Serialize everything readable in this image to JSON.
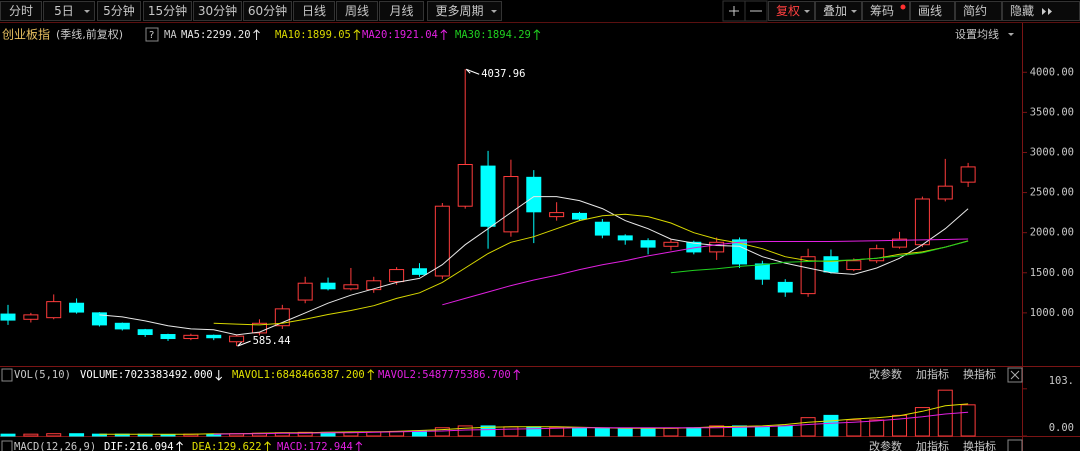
{
  "toolbar": {
    "periods": [
      "分时",
      "5日",
      "5分钟",
      "15分钟",
      "30分钟",
      "60分钟",
      "日线",
      "周线",
      "月线",
      "更多周期"
    ],
    "tools": [
      "复权",
      "叠加",
      "筹码",
      "画线",
      "简约",
      "隐藏"
    ]
  },
  "chart_data": [
    {
      "type": "candlestick",
      "title": "创业板指",
      "subtitle": "(季线,前复权)",
      "indicator": "MA",
      "settings_button": "设置均线",
      "open": [
        985,
        920,
        940,
        1120,
        1000,
        870,
        790,
        730,
        680,
        720,
        640,
        750,
        840,
        1160,
        1370,
        1300,
        1290,
        1390,
        1550,
        1460,
        2330,
        2830,
        2010,
        2690,
        2200,
        2240,
        2130,
        1960,
        1900,
        1830,
        1880,
        1760,
        1910,
        1610,
        1380,
        1240,
        1700,
        1540,
        1650,
        1820,
        1850,
        2420,
        2630
      ],
      "high": [
        1100,
        1000,
        1230,
        1180,
        1010,
        880,
        800,
        740,
        740,
        730,
        730,
        920,
        1100,
        1450,
        1440,
        1560,
        1450,
        1570,
        1620,
        2370,
        4037.96,
        3020,
        2910,
        2780,
        2380,
        2260,
        2170,
        1980,
        1930,
        1920,
        1900,
        1940,
        1940,
        1650,
        1420,
        1800,
        1790,
        1680,
        1850,
        2010,
        2450,
        2920,
        2870
      ],
      "low": [
        850,
        880,
        920,
        990,
        830,
        780,
        700,
        650,
        660,
        660,
        585.44,
        720,
        800,
        1120,
        1280,
        1280,
        1250,
        1350,
        1450,
        1420,
        2300,
        1800,
        1950,
        1870,
        2150,
        2150,
        1930,
        1850,
        1730,
        1780,
        1730,
        1660,
        1560,
        1350,
        1200,
        1200,
        1490,
        1520,
        1620,
        1800,
        1820,
        2390,
        2570
      ],
      "close": [
        910,
        975,
        1140,
        1010,
        850,
        800,
        730,
        680,
        720,
        690,
        710,
        870,
        1050,
        1370,
        1300,
        1350,
        1400,
        1540,
        1480,
        2330,
        2850,
        2080,
        2700,
        2260,
        2250,
        2170,
        1970,
        1910,
        1820,
        1880,
        1760,
        1880,
        1610,
        1420,
        1260,
        1700,
        1510,
        1650,
        1800,
        1920,
        2420,
        2580,
        2820
      ],
      "up_color": "#ff3c3c",
      "down_color": "#00ffff",
      "max_label": "4037.96",
      "min_label": "585.44",
      "ylim": [
        350,
        4340
      ],
      "yticks": [
        {
          "value": 1000,
          "label": "1000.00"
        },
        {
          "value": 1500,
          "label": "1500.00"
        },
        {
          "value": 2000,
          "label": "2000.00"
        },
        {
          "value": 2500,
          "label": "2500.00"
        },
        {
          "value": 3000,
          "label": "3000.00"
        },
        {
          "value": 3500,
          "label": "3500.00"
        },
        {
          "value": 4000,
          "label": "4000.00"
        }
      ],
      "series": [
        {
          "name": "MA5:2299.20",
          "color": "#e8e8e8",
          "values": [
            null,
            null,
            null,
            null,
            975,
            950,
            900,
            840,
            800,
            790,
            725,
            760,
            880,
            1000,
            1120,
            1220,
            1300,
            1380,
            1430,
            1600,
            1850,
            2050,
            2250,
            2450,
            2450,
            2400,
            2300,
            2150,
            2050,
            1920,
            1870,
            1840,
            1830,
            1700,
            1620,
            1560,
            1500,
            1480,
            1560,
            1680,
            1850,
            2050,
            2299.2
          ]
        },
        {
          "name": "MA10:1899.05",
          "color": "#d8d800",
          "values": [
            null,
            null,
            null,
            null,
            null,
            null,
            null,
            null,
            null,
            870,
            860,
            850,
            870,
            920,
            980,
            1030,
            1090,
            1180,
            1250,
            1380,
            1560,
            1740,
            1880,
            1950,
            2050,
            2150,
            2210,
            2230,
            2200,
            2120,
            2000,
            1920,
            1870,
            1800,
            1700,
            1650,
            1640,
            1660,
            1680,
            1730,
            1760,
            1820,
            1899.05
          ]
        },
        {
          "name": "MA20:1921.04",
          "color": "#e020e0",
          "values": [
            null,
            null,
            null,
            null,
            null,
            null,
            null,
            null,
            null,
            null,
            null,
            null,
            null,
            null,
            null,
            null,
            null,
            null,
            null,
            1100,
            1180,
            1260,
            1340,
            1410,
            1470,
            1540,
            1600,
            1650,
            1710,
            1760,
            1810,
            1850,
            1880,
            1890,
            1890,
            1890,
            1890,
            1895,
            1900,
            1905,
            1910,
            1915,
            1921.04
          ]
        },
        {
          "name": "MA30:1894.29",
          "color": "#20d020",
          "values": [
            null,
            null,
            null,
            null,
            null,
            null,
            null,
            null,
            null,
            null,
            null,
            null,
            null,
            null,
            null,
            null,
            null,
            null,
            null,
            null,
            null,
            null,
            null,
            null,
            null,
            null,
            null,
            null,
            null,
            1500,
            1530,
            1550,
            1580,
            1600,
            1630,
            1640,
            1650,
            1660,
            1680,
            1710,
            1750,
            1820,
            1894.29
          ]
        }
      ]
    },
    {
      "type": "volume",
      "title": "VOL(5,10)",
      "buttons": [
        "改参数",
        "加指标",
        "换指标"
      ],
      "ylim": [
        0,
        120
      ],
      "yticks": [
        {
          "value": 103,
          "label": "103."
        },
        {
          "value": 0,
          "label": "0.00"
        }
      ],
      "series": [
        {
          "name": "VOLUME:7023383492.000",
          "color": "#ffffff",
          "values": [
            4,
            4,
            5,
            5,
            4,
            4,
            4,
            3,
            4,
            4,
            5,
            6,
            7,
            8,
            8,
            8,
            9,
            10,
            11,
            18,
            22,
            22,
            20,
            20,
            18,
            18,
            17,
            17,
            16,
            17,
            18,
            22,
            22,
            20,
            22,
            40,
            45,
            35,
            35,
            45,
            62,
            100,
            68
          ]
        },
        {
          "name": "MAVOL1:6848466387.200",
          "color": "#e0e000",
          "values": [
            null,
            null,
            null,
            null,
            4,
            4,
            4,
            4,
            4,
            5,
            5,
            6,
            7,
            7,
            8,
            9,
            9,
            10,
            12,
            14,
            17,
            19,
            20,
            20,
            20,
            19,
            18,
            17,
            17,
            17,
            18,
            20,
            21,
            22,
            25,
            30,
            33,
            37,
            40,
            44,
            54,
            66,
            70
          ]
        },
        {
          "name": "MAVOL2:5487775386.700",
          "color": "#e020e0",
          "values": [
            null,
            null,
            null,
            null,
            null,
            null,
            null,
            null,
            null,
            4,
            5,
            5,
            6,
            6,
            7,
            7,
            8,
            9,
            10,
            11,
            13,
            14,
            15,
            16,
            17,
            18,
            18,
            18,
            18,
            18,
            18,
            18,
            19,
            20,
            22,
            25,
            28,
            30,
            33,
            37,
            42,
            48,
            52
          ]
        }
      ]
    }
  ],
  "macd_panel": {
    "title": "MACD(12,26,9)",
    "lines": [
      {
        "text": "DIF:216.094",
        "color": "#ffffff"
      },
      {
        "text": "DEA:129.622",
        "color": "#e0e000"
      },
      {
        "text": "MACD:172.944",
        "color": "#e020e0"
      }
    ],
    "buttons": [
      "改参数",
      "加指标",
      "换指标"
    ]
  }
}
